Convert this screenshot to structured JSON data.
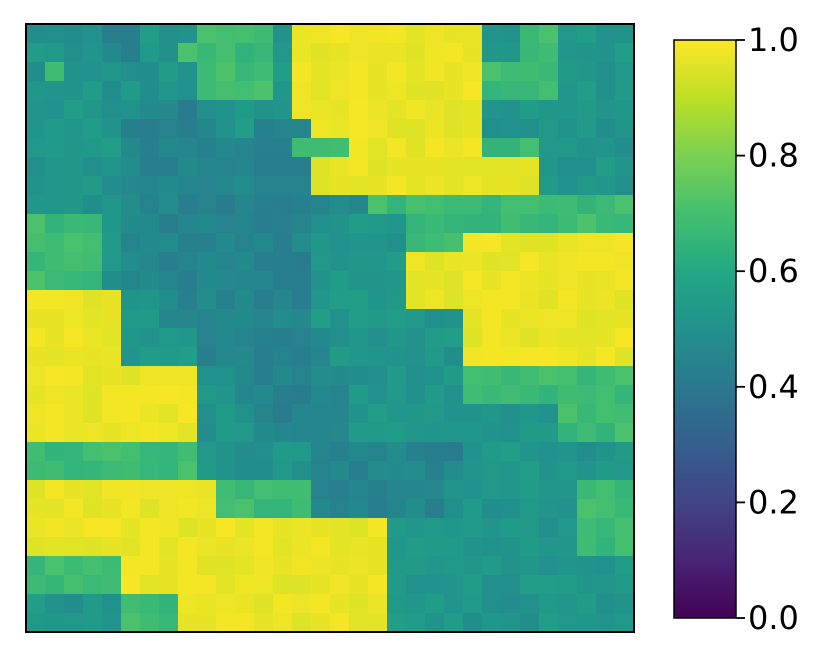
{
  "chart_data": {
    "type": "heatmap",
    "title": "",
    "xlabel": "",
    "ylabel": "",
    "grid": false,
    "colormap": "viridis",
    "vmin": 0.0,
    "vmax": 1.0,
    "n_rows": 32,
    "n_cols": 32,
    "rows": [
      "55554455566665111111111155665555",
      "55554455666665111111111155665555",
      "56555555566665111111111166665555",
      "55555555566665111111111166665555",
      "55555544455555111111111155555555",
      "55555444445544411111111155555555",
      "55555444444444666111111166655555",
      "55555444444444411111111111155555",
      "55555444444444411111111111155555",
      "55555444444444444466666666666666",
      "66665444444444455555666666666666",
      "66665444444444455555666111111111",
      "66665444444444455555111111111111",
      "66665444444444455555111111111111",
      "11111554444444455555111111111111",
      "11111554444444455555555111111111",
      "11111555544444445555555111111111",
      "11111555544444445555555111111111",
      "11111111155444444555555666666666",
      "11111111155444444555555666666666",
      "11111111155544444555555555556666",
      "11111111155544444555555555556666",
      "66666666655555544444444555555555",
      "66666666655555544444444555555555",
      "11111111116666644444445555555666",
      "11111111116666644444445555555666",
      "11111111111111111115555555555666",
      "11111111111111111115555555555666",
      "66666111111111111115555555555555",
      "66666111111111111115555555555555",
      "55555666111111111115555555555555",
      "55555666111111111115555555555555"
    ],
    "level_values": {
      "1": 0.97,
      "4": 0.45,
      "5": 0.52,
      "6": 0.68
    },
    "colorbar": {
      "ticks": [
        0.0,
        0.2,
        0.4,
        0.6,
        0.8,
        1.0
      ],
      "tick_labels": [
        "0.0",
        "0.2",
        "0.4",
        "0.6",
        "0.8",
        "1.0"
      ]
    }
  }
}
